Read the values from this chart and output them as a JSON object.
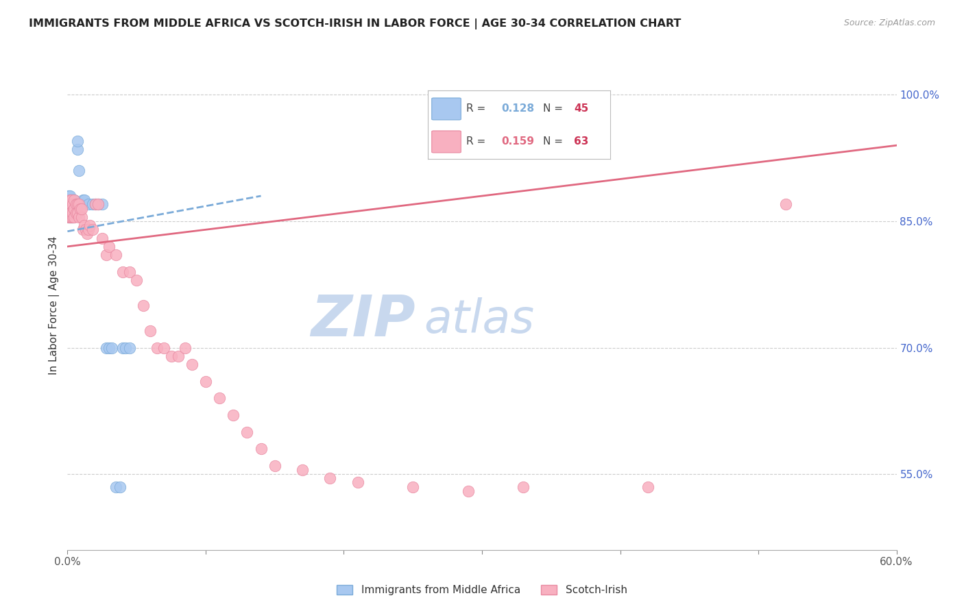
{
  "title": "IMMIGRANTS FROM MIDDLE AFRICA VS SCOTCH-IRISH IN LABOR FORCE | AGE 30-34 CORRELATION CHART",
  "source": "Source: ZipAtlas.com",
  "ylabel": "In Labor Force | Age 30-34",
  "right_yticks": [
    0.55,
    0.7,
    0.85,
    1.0
  ],
  "right_yticklabels": [
    "55.0%",
    "70.0%",
    "85.0%",
    "100.0%"
  ],
  "xmin": 0.0,
  "xmax": 0.6,
  "ymin": 0.46,
  "ymax": 1.04,
  "xticks": [
    0.0,
    0.1,
    0.2,
    0.3,
    0.4,
    0.5,
    0.6
  ],
  "xticklabels": [
    "0.0%",
    "",
    "",
    "",
    "",
    "",
    "60.0%"
  ],
  "series1_name": "Immigrants from Middle Africa",
  "series1_R": "0.128",
  "series1_N": "45",
  "series1_color": "#a8c8f0",
  "series1_edge": "#7aaad8",
  "series2_name": "Scotch-Irish",
  "series2_R": "0.159",
  "series2_N": "63",
  "series2_color": "#f8b0c0",
  "series2_edge": "#e888a0",
  "trendline1_color": "#7aaad8",
  "trendline2_color": "#e06880",
  "trendline1_style": "--",
  "trendline2_style": "-",
  "watermark_zip": "ZIP",
  "watermark_atlas": "atlas",
  "watermark_color_zip": "#c8d8ee",
  "watermark_color_atlas": "#c8d8ee",
  "legend_box_color": "#dddddd",
  "series1_x": [
    0.001,
    0.001,
    0.001,
    0.001,
    0.001,
    0.002,
    0.002,
    0.002,
    0.002,
    0.002,
    0.002,
    0.003,
    0.003,
    0.003,
    0.003,
    0.003,
    0.004,
    0.004,
    0.004,
    0.004,
    0.005,
    0.005,
    0.005,
    0.006,
    0.006,
    0.007,
    0.007,
    0.008,
    0.009,
    0.01,
    0.011,
    0.012,
    0.015,
    0.018,
    0.02,
    0.022,
    0.025,
    0.028,
    0.03,
    0.032,
    0.035,
    0.038,
    0.04,
    0.042,
    0.045
  ],
  "series1_y": [
    0.87,
    0.875,
    0.88,
    0.855,
    0.86,
    0.87,
    0.875,
    0.88,
    0.855,
    0.86,
    0.865,
    0.87,
    0.875,
    0.855,
    0.86,
    0.865,
    0.87,
    0.875,
    0.855,
    0.865,
    0.87,
    0.86,
    0.875,
    0.86,
    0.87,
    0.935,
    0.945,
    0.91,
    0.87,
    0.87,
    0.875,
    0.875,
    0.87,
    0.87,
    0.87,
    0.87,
    0.87,
    0.7,
    0.7,
    0.7,
    0.535,
    0.535,
    0.7,
    0.7,
    0.7
  ],
  "series2_x": [
    0.001,
    0.001,
    0.001,
    0.002,
    0.002,
    0.002,
    0.003,
    0.003,
    0.003,
    0.003,
    0.004,
    0.004,
    0.004,
    0.005,
    0.005,
    0.005,
    0.006,
    0.006,
    0.007,
    0.007,
    0.008,
    0.008,
    0.009,
    0.01,
    0.01,
    0.011,
    0.012,
    0.013,
    0.014,
    0.015,
    0.016,
    0.018,
    0.02,
    0.022,
    0.025,
    0.028,
    0.03,
    0.035,
    0.04,
    0.045,
    0.05,
    0.055,
    0.06,
    0.065,
    0.07,
    0.075,
    0.08,
    0.085,
    0.09,
    0.1,
    0.11,
    0.12,
    0.13,
    0.14,
    0.15,
    0.17,
    0.19,
    0.21,
    0.25,
    0.29,
    0.33,
    0.42,
    0.52
  ],
  "series2_y": [
    0.87,
    0.855,
    0.86,
    0.875,
    0.86,
    0.855,
    0.87,
    0.855,
    0.86,
    0.875,
    0.87,
    0.855,
    0.86,
    0.875,
    0.865,
    0.855,
    0.87,
    0.86,
    0.87,
    0.86,
    0.87,
    0.855,
    0.865,
    0.855,
    0.865,
    0.84,
    0.845,
    0.84,
    0.835,
    0.84,
    0.845,
    0.84,
    0.87,
    0.87,
    0.83,
    0.81,
    0.82,
    0.81,
    0.79,
    0.79,
    0.78,
    0.75,
    0.72,
    0.7,
    0.7,
    0.69,
    0.69,
    0.7,
    0.68,
    0.66,
    0.64,
    0.62,
    0.6,
    0.58,
    0.56,
    0.555,
    0.545,
    0.54,
    0.535,
    0.53,
    0.535,
    0.535,
    0.87
  ],
  "trendline1_x0": 0.0,
  "trendline1_y0": 0.838,
  "trendline1_x1": 0.14,
  "trendline1_y1": 0.88,
  "trendline2_x0": 0.0,
  "trendline2_y0": 0.82,
  "trendline2_x1": 0.6,
  "trendline2_y1": 0.94
}
